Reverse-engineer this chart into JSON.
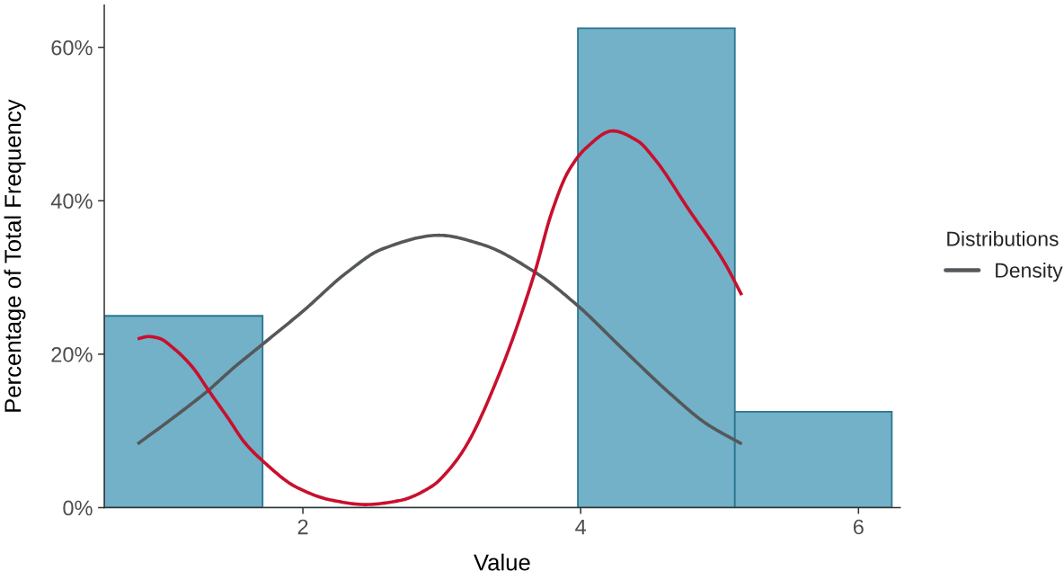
{
  "chart_data": {
    "type": "histogram",
    "xlabel": "Value",
    "ylabel": "Percentage of Total Frequency",
    "legend_title": "Distributions",
    "legend": "right",
    "grid": false,
    "bins": [
      0.57,
      1.71,
      2.84,
      3.98,
      5.11,
      6.24
    ],
    "values": [
      25,
      0,
      0,
      62.5,
      12.5
    ],
    "color": "#72b1c7",
    "xlim": [
      0.57,
      6.3
    ],
    "xticks": [
      2,
      4,
      6
    ],
    "ylim": [
      0,
      65.5
    ],
    "yticks": [
      {
        "value": 0,
        "label": "0%"
      },
      {
        "value": 20,
        "label": "20%"
      },
      {
        "value": 40,
        "label": "40%"
      },
      {
        "value": 60,
        "label": "60%"
      }
    ],
    "series": [
      {
        "type": "line",
        "name": "Density",
        "color": "#55585a",
        "x": [
          0.81,
          1.08,
          1.32,
          1.5,
          1.71,
          2.0,
          2.32,
          2.57,
          2.98,
          3.29,
          3.67,
          3.98,
          4.29,
          4.66,
          4.9,
          5.16
        ],
        "values": [
          8.3,
          11.9,
          15.3,
          18.2,
          21.3,
          25.6,
          30.7,
          33.7,
          35.5,
          34.3,
          30.7,
          26.3,
          20.9,
          14.6,
          11.0,
          8.3
        ]
      },
      {
        "type": "line",
        "color": "#c8102e",
        "x": [
          0.81,
          0.89,
          0.96,
          1.08,
          1.21,
          1.32,
          1.46,
          1.58,
          1.71,
          1.95,
          2.2,
          2.45,
          2.69,
          2.93,
          3.05,
          3.17,
          3.42,
          3.67,
          3.79,
          3.91,
          4.04,
          4.23,
          4.41,
          4.53,
          4.78,
          5.03,
          5.16
        ],
        "values": [
          22.0,
          22.3,
          22.1,
          20.6,
          18.2,
          15.3,
          11.7,
          8.5,
          6.1,
          2.7,
          1.0,
          0.4,
          0.9,
          2.8,
          4.9,
          7.9,
          17.7,
          30.7,
          38.4,
          43.8,
          46.9,
          49.1,
          47.8,
          45.5,
          38.8,
          32.1,
          27.7
        ]
      }
    ]
  }
}
